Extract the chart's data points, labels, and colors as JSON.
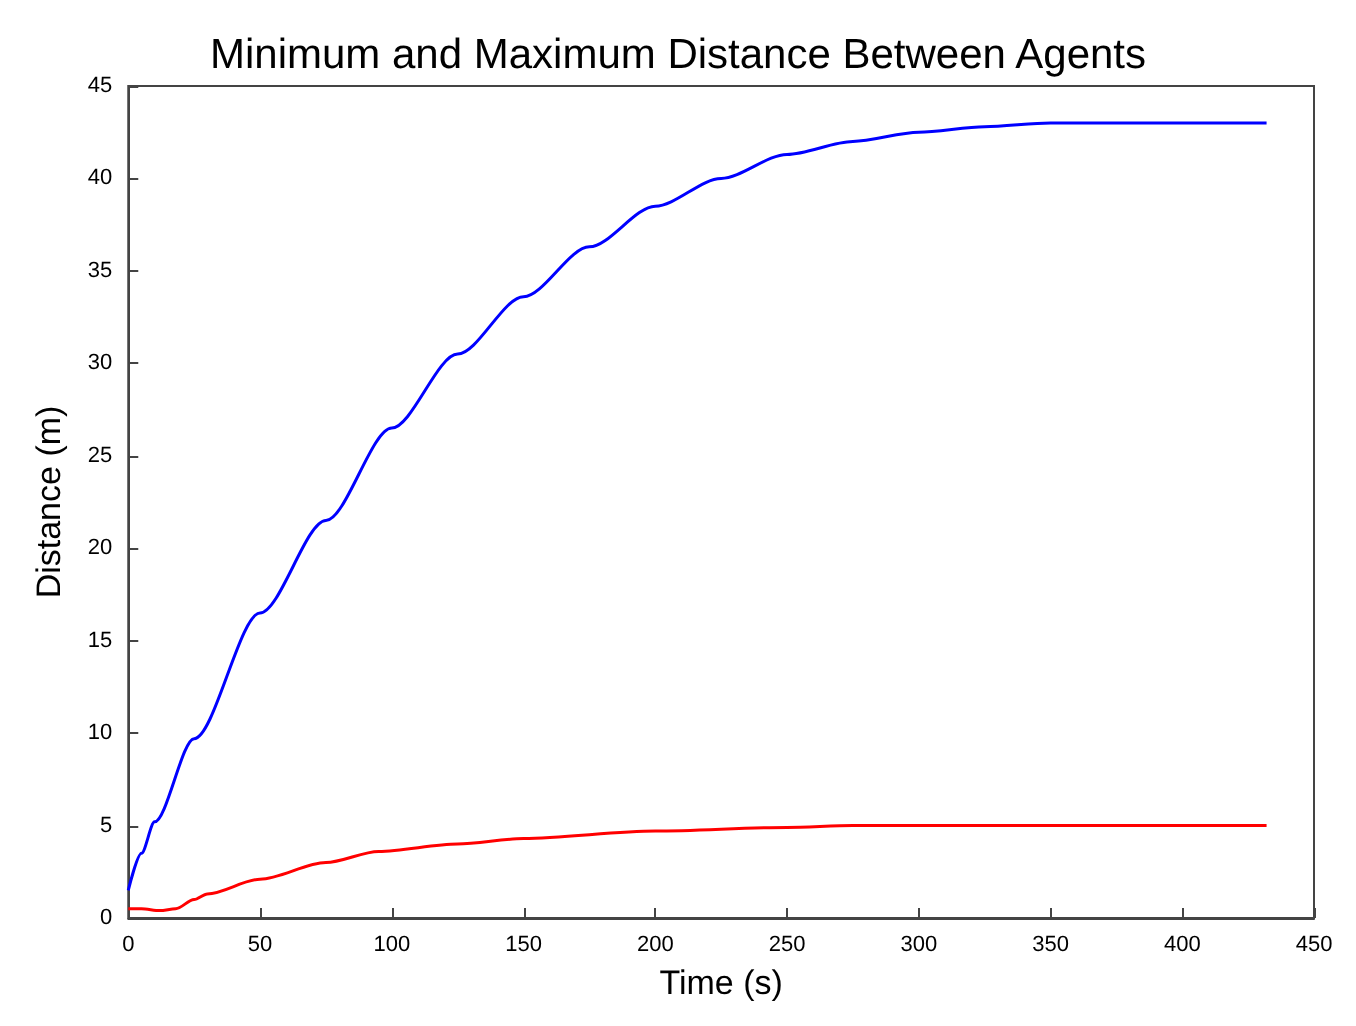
{
  "chart_data": {
    "type": "line",
    "title": "Minimum and Maximum Distance Between Agents",
    "xlabel": "Time (s)",
    "ylabel": "Distance (m)",
    "xlim": [
      0,
      450
    ],
    "xticks": [
      0,
      50,
      100,
      150,
      200,
      250,
      300,
      350,
      400,
      450
    ],
    "ylim": [
      0,
      45
    ],
    "yticks": [
      0,
      5,
      10,
      15,
      20,
      25,
      30,
      35,
      40,
      45
    ],
    "grid": false,
    "marker": "none",
    "line_style": "solid",
    "series": [
      {
        "color": "#0000ff",
        "x": [
          0,
          5,
          10,
          25,
          50,
          75,
          100,
          125,
          150,
          175,
          200,
          225,
          250,
          275,
          300,
          325,
          350,
          375,
          400,
          432
        ],
        "values": [
          1.5,
          3.5,
          5.2,
          9.7,
          16.5,
          21.5,
          26.5,
          30.5,
          33.6,
          36.3,
          38.5,
          40.0,
          41.3,
          42.0,
          42.5,
          42.8,
          43.0,
          43.0,
          43.0,
          43.0
        ]
      },
      {
        "color": "#ff0000",
        "x": [
          0,
          5,
          12,
          18,
          25,
          30,
          50,
          75,
          95,
          125,
          150,
          200,
          250,
          275,
          350,
          432
        ],
        "values": [
          0.5,
          0.5,
          0.4,
          0.5,
          1.0,
          1.3,
          2.1,
          3.0,
          3.6,
          4.0,
          4.3,
          4.7,
          4.9,
          5.0,
          5.0,
          5.0
        ]
      }
    ]
  }
}
